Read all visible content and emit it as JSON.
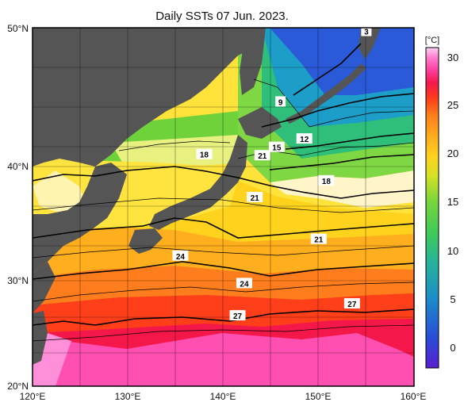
{
  "title": "Daily SSTs 07 Jun. 2023.",
  "colorbar_unit": "[°C]",
  "colors": {
    "land": "#555555",
    "frame": "#000000",
    "scale": [
      "#5a1ecf",
      "#2a4ad8",
      "#1c8ec8",
      "#27b39a",
      "#3fc95a",
      "#78d63a",
      "#d6e028",
      "#ffd21e",
      "#ffae1e",
      "#ff7d1c",
      "#ff3e1a",
      "#f4184a",
      "#ff3fa0",
      "#ff7fd2",
      "#ffd0f2"
    ]
  },
  "chart_data": {
    "type": "heatmap",
    "title": "Daily SSTs 07 Jun. 2023.",
    "x_ticks": [
      "120°E",
      "130°E",
      "140°E",
      "150°E",
      "160°E"
    ],
    "y_ticks": [
      "50°N",
      "40°N",
      "30°N",
      "20°N"
    ],
    "xlim": [
      120,
      160
    ],
    "ylim": [
      20,
      50
    ],
    "grid": true,
    "colorbar": {
      "ticks": [
        "30",
        "25",
        "20",
        "15",
        "10",
        "5",
        "0"
      ],
      "range": [
        -3,
        32
      ],
      "unit": "[°C]"
    },
    "contour_labels": [
      {
        "text": "3",
        "lon": 155.0,
        "lat": 49.7
      },
      {
        "text": "9",
        "lon": 146.0,
        "lat": 43.8
      },
      {
        "text": "12",
        "lon": 148.5,
        "lat": 40.7
      },
      {
        "text": "15",
        "lon": 145.6,
        "lat": 40.0
      },
      {
        "text": "21",
        "lon": 144.1,
        "lat": 39.3
      },
      {
        "text": "18",
        "lon": 138.0,
        "lat": 39.4
      },
      {
        "text": "18",
        "lon": 150.8,
        "lat": 37.2
      },
      {
        "text": "21",
        "lon": 143.3,
        "lat": 35.8
      },
      {
        "text": "21",
        "lon": 150.0,
        "lat": 32.3
      },
      {
        "text": "24",
        "lon": 135.5,
        "lat": 30.9
      },
      {
        "text": "24",
        "lon": 142.2,
        "lat": 28.6
      },
      {
        "text": "27",
        "lon": 153.5,
        "lat": 26.9
      },
      {
        "text": "27",
        "lon": 141.5,
        "lat": 25.9
      }
    ]
  }
}
